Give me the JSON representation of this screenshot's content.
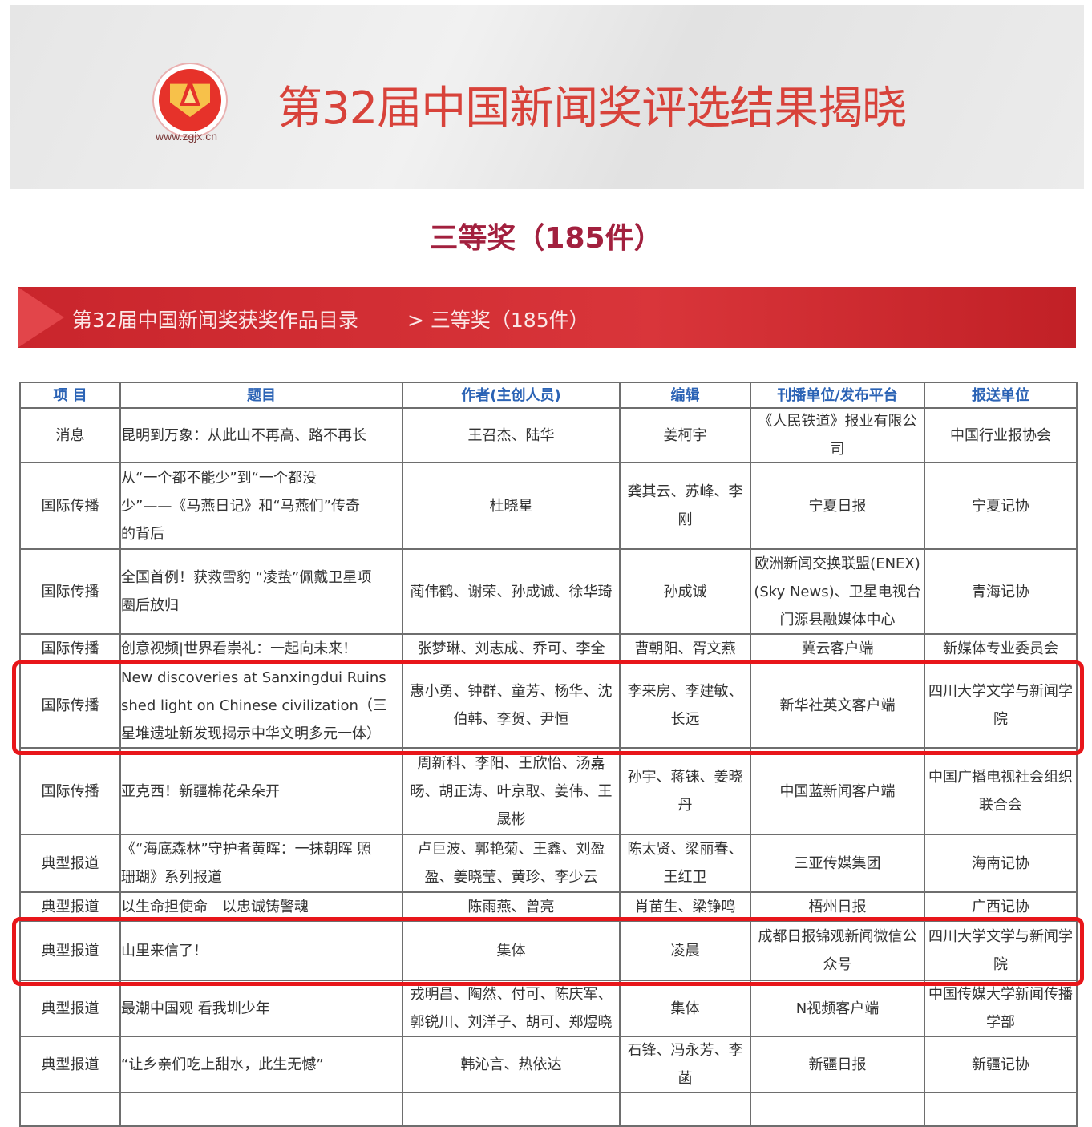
{
  "header": {
    "logo_url_text": "www.zgjx.cn",
    "title": "第32届中国新闻奖评选结果揭晓",
    "subtitle": "三等奖（185件）"
  },
  "breadcrumb": {
    "catalog": "第32届中国新闻奖获奖作品目录",
    "current": "> 三等奖（185件）"
  },
  "colors": {
    "title": "#d8423a",
    "subtitle": "#a2203e",
    "bar": "#c9252c",
    "header_text": "#2b63b5",
    "highlight": "#e8161a"
  },
  "table": {
    "columns": [
      "项 目",
      "题目",
      "作者(主创人员)",
      "编辑",
      "刊播单位/发布平台",
      "报送单位"
    ],
    "rows": [
      [
        "消息",
        "昆明到万象：从此山不再高、路不再长",
        "王召杰、陆华",
        "姜柯宇",
        "《人民铁道》报业有限公\n司",
        "中国行业报协会"
      ],
      [
        "国际传播",
        "从“一个都不能少”到“一个都没\n少”——《马燕日记》和“马燕们”传奇\n的背后",
        "杜晓星",
        "龚其云、苏峰、李\n刚",
        "宁夏日报",
        "宁夏记协"
      ],
      [
        "国际传播",
        "全国首例！获救雪豹 “凌蛰”佩戴卫星项\n圈后放归",
        "蔺伟鹤、谢荣、孙成诚、徐华琦",
        "孙成诚",
        "欧洲新闻交换联盟(ENEX)\n(Sky News)、卫星电视台\n门源县融媒体中心",
        "青海记协"
      ],
      [
        "国际传播",
        "创意视频|世界看崇礼：一起向未来！",
        "张梦琳、刘志成、乔可、李全",
        "曹朝阳、胥文燕",
        "冀云客户端",
        "新媒体专业委员会"
      ],
      [
        "国际传播",
        "New discoveries at Sanxingdui Ruins\nshed light on Chinese civilization（三\n星堆遗址新发现揭示中华文明多元一体）",
        "惠小勇、钟群、童芳、杨华、沈\n伯韩、李贺、尹恒",
        "李来房、李建敏、\n长远",
        "新华社英文客户端",
        "四川大学文学与新闻学\n院"
      ],
      [
        "国际传播",
        "亚克西！新疆棉花朵朵开",
        "周新科、李阳、王欣怡、汤嘉\n旸、胡正涛、叶京取、姜伟、王\n晟彬",
        "孙宇、蒋铼、姜晓\n丹",
        "中国蓝新闻客户端",
        "中国广播电视社会组织\n联合会"
      ],
      [
        "典型报道",
        "《“海底森林”守护者黄晖：一抹朝晖 照\n珊瑚》系列报道",
        "卢巨波、郭艳菊、王鑫、刘盈\n盈、姜晓莹、黄珍、李少云",
        "陈太贤、梁丽春、\n王红卫",
        "三亚传媒集团",
        "海南记协"
      ],
      [
        "典型报道",
        "以生命担使命　以忠诚铸警魂",
        "陈雨燕、曾亮",
        "肖苗生、梁铮鸣",
        "梧州日报",
        "广西记协"
      ],
      [
        "典型报道",
        "山里来信了！",
        "集体",
        "凌晨",
        "成都日报锦观新闻微信公\n众号",
        "四川大学文学与新闻学\n院"
      ],
      [
        "典型报道",
        "最潮中国观 看我圳少年",
        "戎明昌、陶然、付可、陈庆军、\n郭锐川、刘洋子、胡可、郑煜晓",
        "集体",
        "N视频客户端",
        "中国传媒大学新闻传播\n学部"
      ],
      [
        "典型报道",
        "“让乡亲们吃上甜水，此生无憾”",
        "韩沁言、热依达",
        "石锋、冯永芳、李\n菡",
        "新疆日报",
        "新疆记协"
      ]
    ]
  }
}
